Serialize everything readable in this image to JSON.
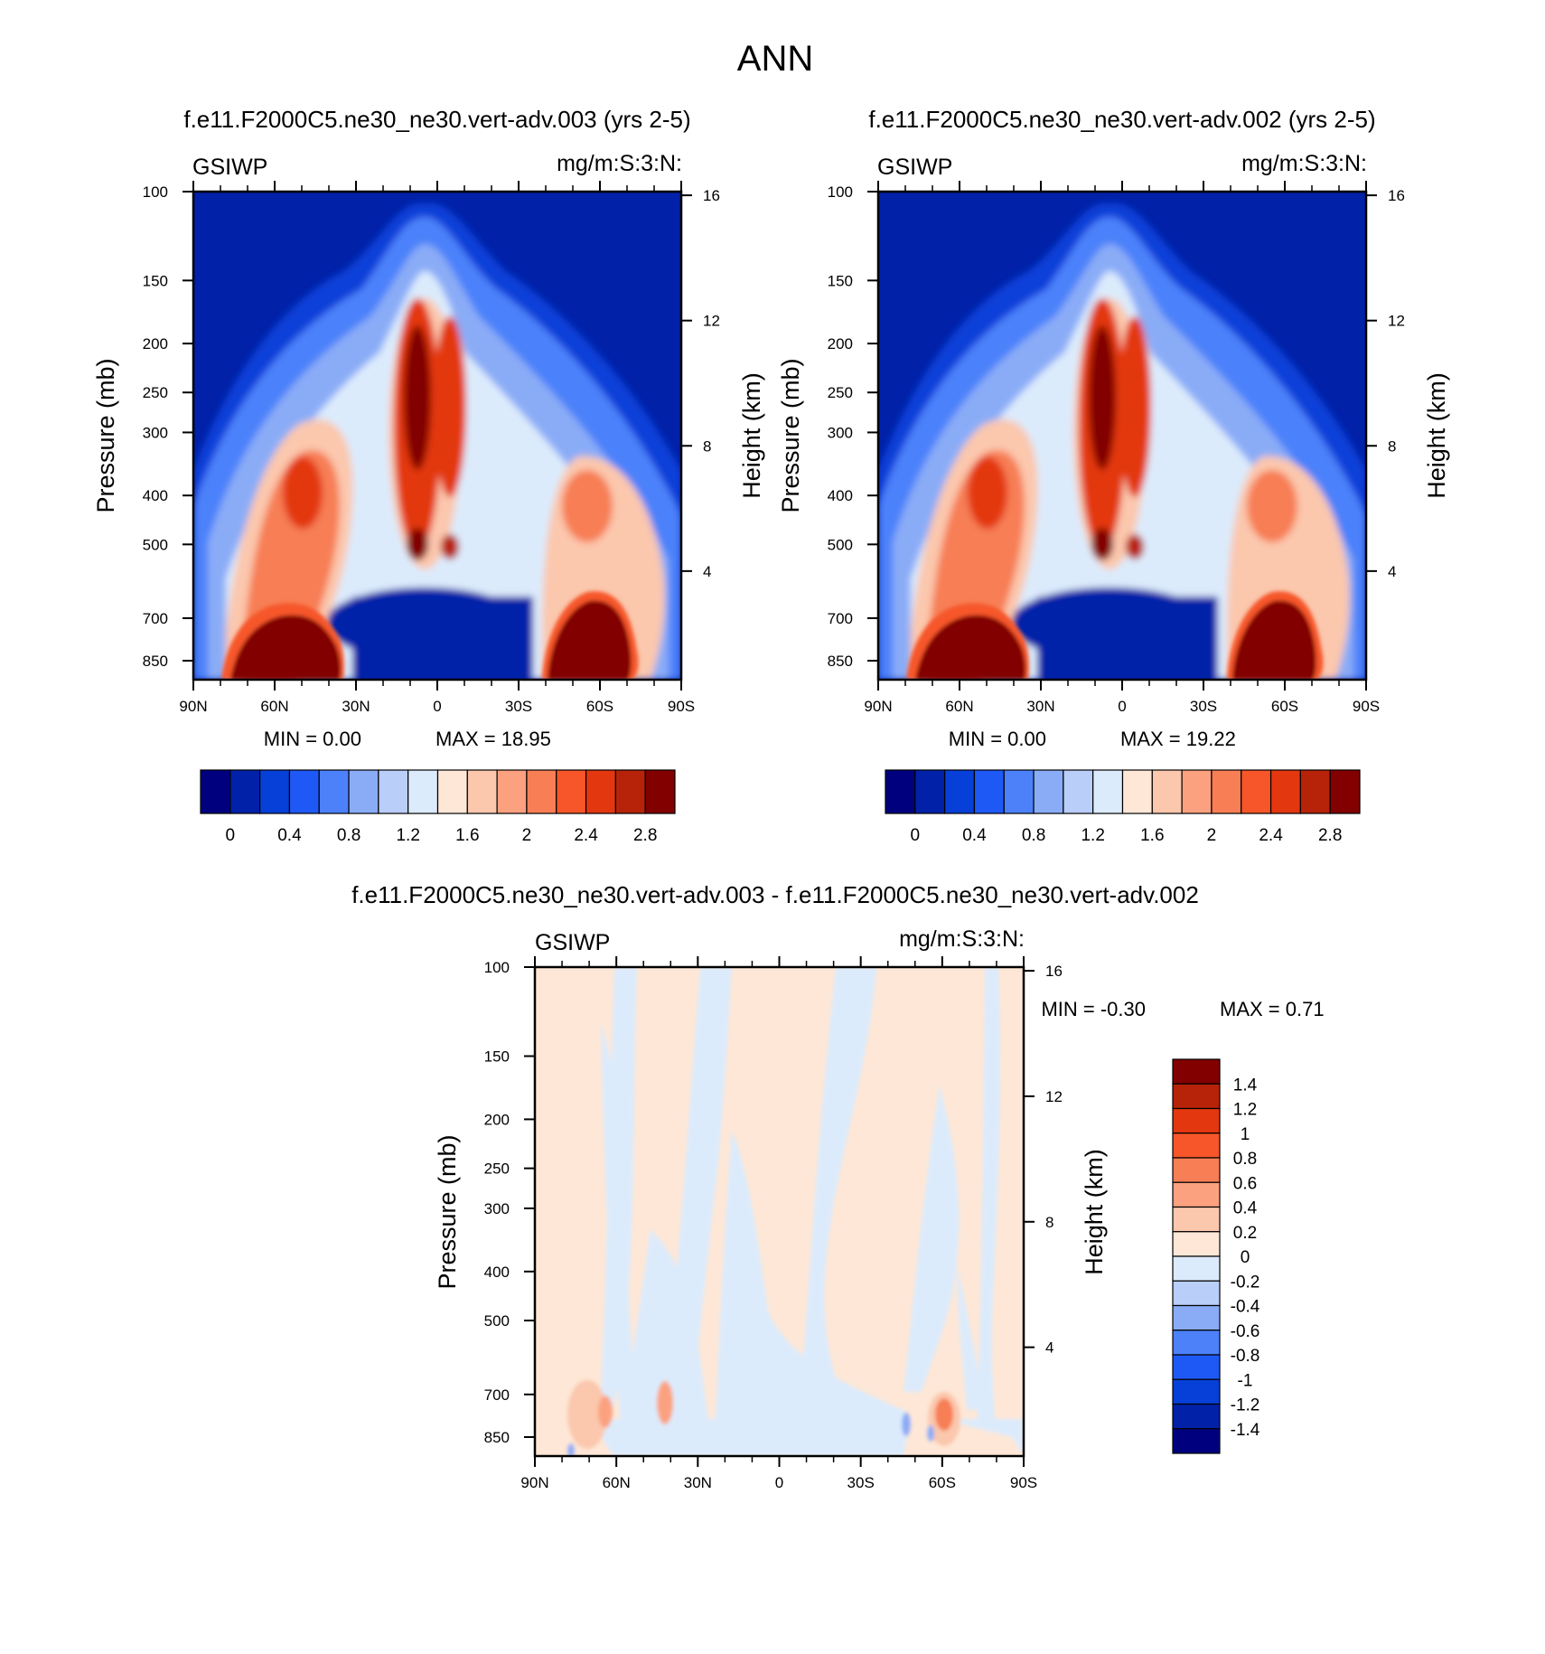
{
  "figure_title": "ANN",
  "chart_data": [
    {
      "type": "heatmap",
      "title": "f.e11.F2000C5.ne30_ne30.vert-adv.003 (yrs 2-5)",
      "variable": "GSIWP",
      "units": "mg/m:S:3:N:",
      "ylabel": "Pressure (mb)",
      "ylabel_right": "Height (km)",
      "x_ticks": [
        "90N",
        "60N",
        "30N",
        "0",
        "30S",
        "60S",
        "90S"
      ],
      "y_ticks": [
        "100",
        "150",
        "200",
        "250",
        "300",
        "400",
        "500",
        "700",
        "850"
      ],
      "y_right_ticks": [
        "16",
        "12",
        "8",
        "4"
      ],
      "min_label": "MIN =   0.00",
      "max_label": "MAX =  18.95",
      "min": 0.0,
      "max": 18.95,
      "colorbar_labels": [
        "0",
        "0.4",
        "0.8",
        "1.2",
        "1.6",
        "2",
        "2.4",
        "2.8"
      ],
      "colorbar_colors": [
        "#00007f",
        "#0021a8",
        "#0740d8",
        "#1f59f5",
        "#4c81fa",
        "#8aacf7",
        "#b9cef9",
        "#dcebfc",
        "#fee7d6",
        "#fbc7ad",
        "#fba17f",
        "#f77e55",
        "#f65629",
        "#e33710",
        "#b72309",
        "#820000"
      ]
    },
    {
      "type": "heatmap",
      "title": "f.e11.F2000C5.ne30_ne30.vert-adv.002 (yrs 2-5)",
      "variable": "GSIWP",
      "units": "mg/m:S:3:N:",
      "ylabel": "Pressure (mb)",
      "ylabel_right": "Height (km)",
      "x_ticks": [
        "90N",
        "60N",
        "30N",
        "0",
        "30S",
        "60S",
        "90S"
      ],
      "y_ticks": [
        "100",
        "150",
        "200",
        "250",
        "300",
        "400",
        "500",
        "700",
        "850"
      ],
      "y_right_ticks": [
        "16",
        "12",
        "8",
        "4"
      ],
      "min_label": "MIN =   0.00",
      "max_label": "MAX =  19.22",
      "min": 0.0,
      "max": 19.22,
      "colorbar_labels": [
        "0",
        "0.4",
        "0.8",
        "1.2",
        "1.6",
        "2",
        "2.4",
        "2.8"
      ],
      "colorbar_colors": [
        "#00007f",
        "#0021a8",
        "#0740d8",
        "#1f59f5",
        "#4c81fa",
        "#8aacf7",
        "#b9cef9",
        "#dcebfc",
        "#fee7d6",
        "#fbc7ad",
        "#fba17f",
        "#f77e55",
        "#f65629",
        "#e33710",
        "#b72309",
        "#820000"
      ]
    },
    {
      "type": "heatmap",
      "title": "f.e11.F2000C5.ne30_ne30.vert-adv.003 - f.e11.F2000C5.ne30_ne30.vert-adv.002",
      "variable": "GSIWP",
      "units": "mg/m:S:3:N:",
      "ylabel": "Pressure (mb)",
      "ylabel_right": "Height (km)",
      "x_ticks": [
        "90N",
        "60N",
        "30N",
        "0",
        "30S",
        "60S",
        "90S"
      ],
      "y_ticks": [
        "100",
        "150",
        "200",
        "250",
        "300",
        "400",
        "500",
        "700",
        "850"
      ],
      "y_right_ticks": [
        "16",
        "12",
        "8",
        "4"
      ],
      "min_label": "MIN =  -0.30",
      "max_label": "MAX =   0.71",
      "min": -0.3,
      "max": 0.71,
      "colorbar_labels": [
        "1.4",
        "1.2",
        "1",
        "0.8",
        "0.6",
        "0.4",
        "0.2",
        "0",
        "-0.2",
        "-0.4",
        "-0.6",
        "-0.8",
        "-1",
        "-1.2",
        "-1.4"
      ],
      "colorbar_colors": [
        "#820000",
        "#b72309",
        "#e33710",
        "#f65629",
        "#f77e55",
        "#fba17f",
        "#fbc7ad",
        "#fee7d6",
        "#dcebfc",
        "#b9cef9",
        "#8aacf7",
        "#4c81fa",
        "#1f59f5",
        "#0740d8",
        "#0021a8",
        "#00007f"
      ]
    }
  ]
}
